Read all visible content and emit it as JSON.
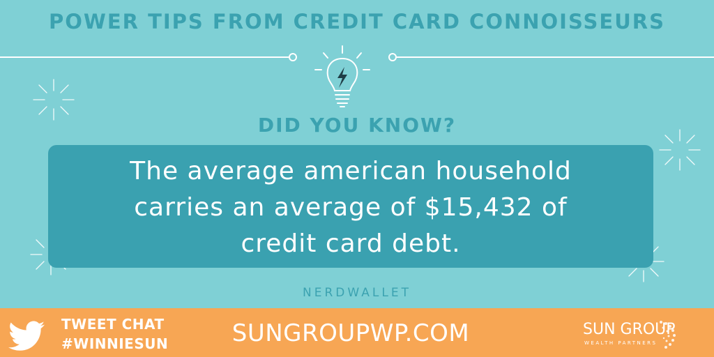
{
  "header": {
    "title": "POWER TIPS FROM CREDIT CARD CONNOISSEURS"
  },
  "main": {
    "icon": "lightbulb-icon",
    "kicker": "DID YOU KNOW?",
    "quote_lines": [
      "The average american household",
      "carries an average of $15,432 of",
      "credit card debt."
    ],
    "source": "NERDWALLET"
  },
  "footer": {
    "social_icon": "twitter-bird-icon",
    "tweet_chat_line1": "TWEET CHAT",
    "tweet_chat_line2": "#WINNIESUN",
    "website": "SUNGROUPWP.COM",
    "logo_name": "SUN GROUP",
    "logo_subtitle": "WEALTH PARTNERS"
  },
  "colors": {
    "background": "#7fd0d5",
    "accent_teal": "#3ba2b0",
    "quote_box": "#3aa1b0",
    "footer": "#f7a654",
    "text_light": "#ffffff"
  }
}
